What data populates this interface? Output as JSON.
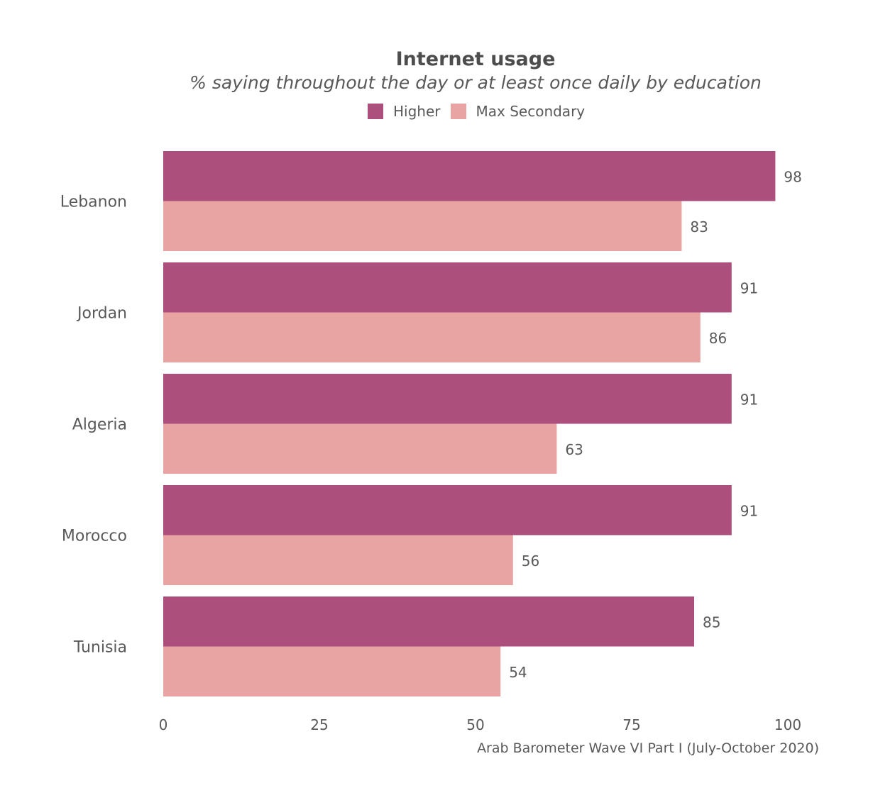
{
  "chart_data": {
    "type": "bar",
    "orientation": "horizontal",
    "title": "Internet usage",
    "subtitle": "% saying throughout the day or at least once daily by education",
    "caption": "Arab Barometer Wave VI Part I (July-October 2020)",
    "categories": [
      "Lebanon",
      "Jordan",
      "Algeria",
      "Morocco",
      "Tunisia"
    ],
    "series": [
      {
        "name": "Higher",
        "color": "#AD4F7C",
        "values": [
          98,
          91,
          91,
          91,
          85
        ]
      },
      {
        "name": "Max Secondary",
        "color": "#E8A4A3",
        "values": [
          83,
          86,
          63,
          56,
          54
        ]
      }
    ],
    "xlim": [
      0,
      100
    ],
    "xticks": [
      "0",
      "25",
      "50",
      "75",
      "100"
    ],
    "grid": false,
    "legend": "top"
  }
}
